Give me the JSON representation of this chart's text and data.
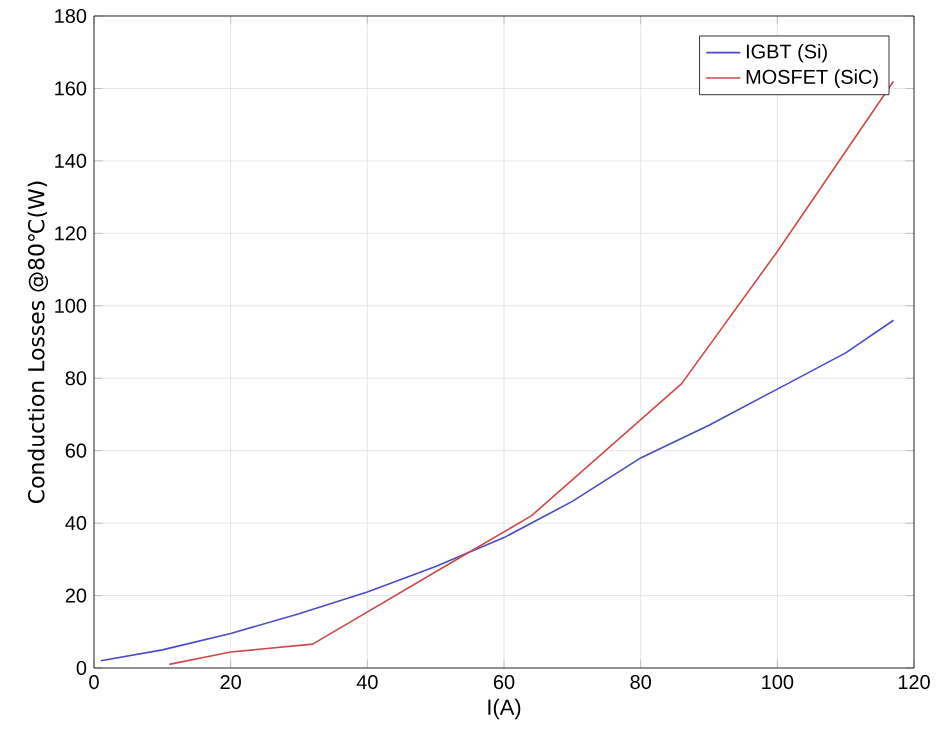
{
  "chart_data": {
    "type": "line",
    "xlabel": "I(A)",
    "ylabel": "Conduction Losses @80℃(W)",
    "xlim": [
      0,
      120
    ],
    "ylim": [
      0,
      180
    ],
    "xticks": [
      0,
      20,
      40,
      60,
      80,
      100,
      120
    ],
    "yticks": [
      0,
      20,
      40,
      60,
      80,
      100,
      120,
      140,
      160,
      180
    ],
    "grid": true,
    "legend": "top right",
    "line_style": "solid",
    "marker": "none",
    "series": [
      {
        "name": "IGBT (Si)",
        "color": "#4b4bc8",
        "x": [
          1,
          10,
          20,
          30,
          40,
          50,
          60,
          70,
          80,
          90,
          100,
          110,
          117
        ],
        "values": [
          2,
          5,
          9.5,
          15,
          21,
          28,
          36,
          46,
          58,
          67,
          77,
          87,
          96
        ]
      },
      {
        "name": "MOSFET (SiC)",
        "color": "#d04848",
        "x": [
          11,
          20,
          32,
          54,
          64,
          86,
          100,
          117
        ],
        "values": [
          1,
          4.4,
          6.6,
          31,
          42,
          78.5,
          115,
          162
        ]
      }
    ]
  }
}
